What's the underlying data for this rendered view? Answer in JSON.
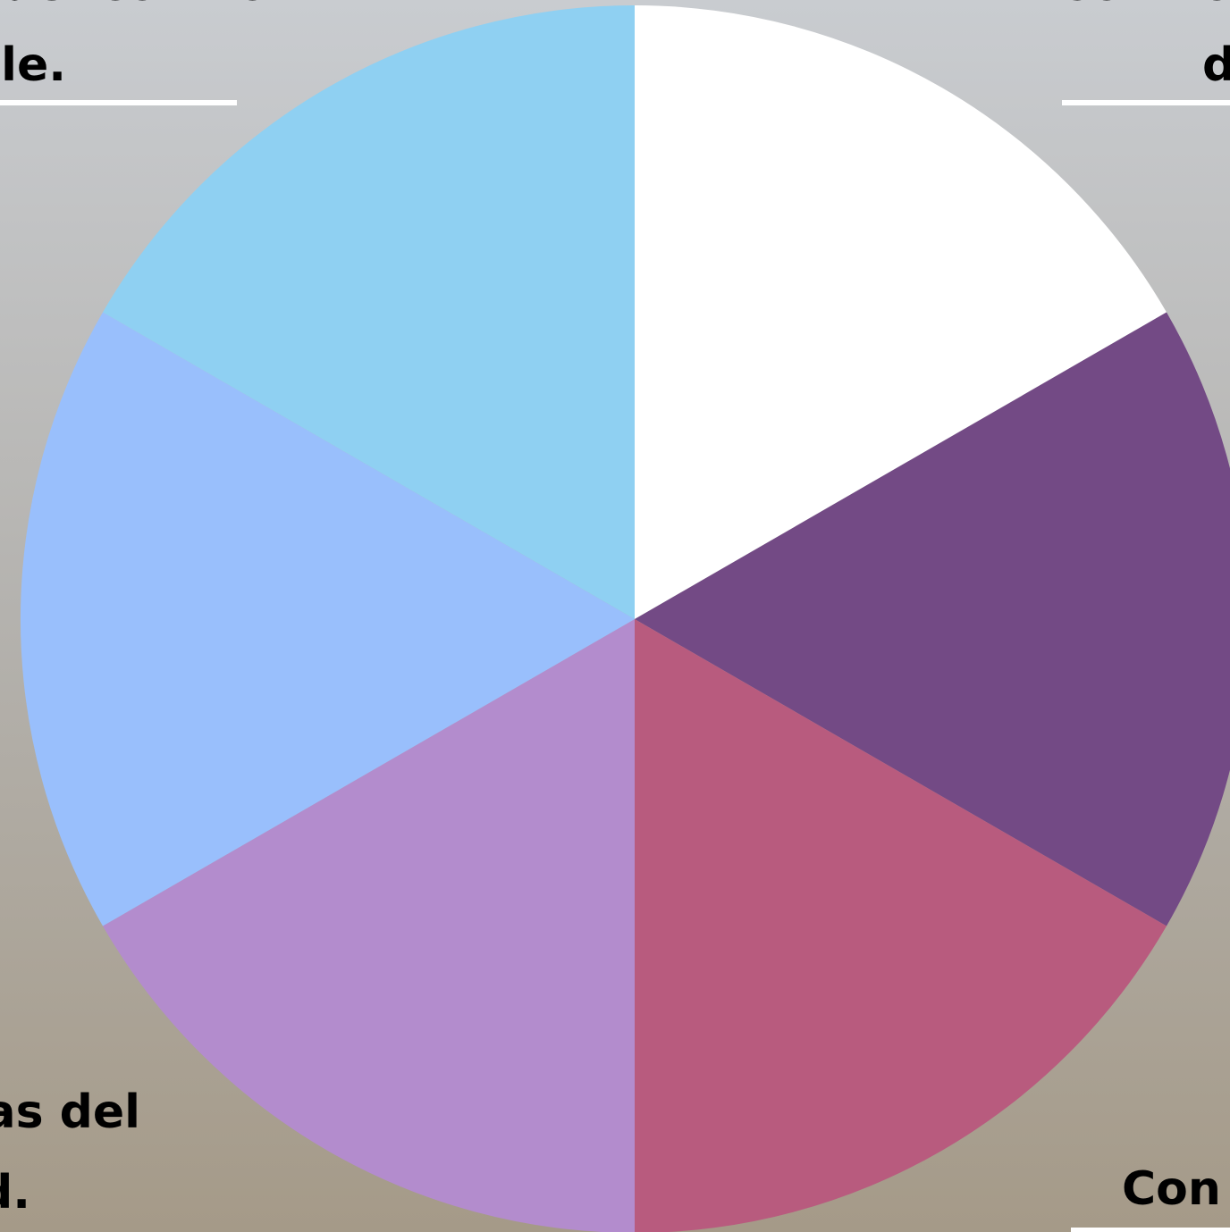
{
  "labels": {
    "top_left_line1": "del control",
    "top_left_line2": "le.",
    "top_right_line1": "Contro",
    "top_right_line2": "d",
    "bottom_left_line1": "as del",
    "bottom_left_line2": "d.",
    "bottom_right_line1": "Con"
  }
}
